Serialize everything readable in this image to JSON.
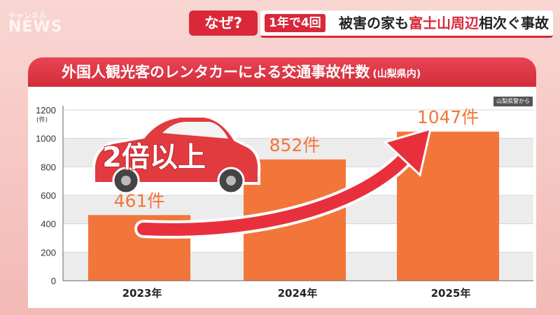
{
  "logo": {
    "line1": "チャンネル",
    "line2": "NEWS"
  },
  "header": {
    "naze": "なぜ?",
    "tag": "1年で4回",
    "text_a": "被害の家も",
    "text_red": "富士山周辺",
    "text_b": "相次ぐ事故"
  },
  "title": {
    "main": "外国人観光客のレンタカーによる交通事故件数",
    "sub": "(山梨県内)"
  },
  "source": "山梨県警から",
  "annotation": {
    "text": "2倍以上",
    "icon": "car-icon"
  },
  "colors": {
    "bar": "#f2763a",
    "accent": "#d9283a",
    "arrow": "#e8303d"
  },
  "chart_data": {
    "type": "bar",
    "categories": [
      "2023年",
      "2024年",
      "2025年"
    ],
    "values": [
      461,
      852,
      1047
    ],
    "data_labels": [
      "461件",
      "852件",
      "1047件"
    ],
    "ylabel": "(件)",
    "yticks": [
      0,
      200,
      400,
      600,
      800,
      1000,
      1200
    ],
    "ylim": [
      0,
      1200
    ],
    "grid": true
  }
}
